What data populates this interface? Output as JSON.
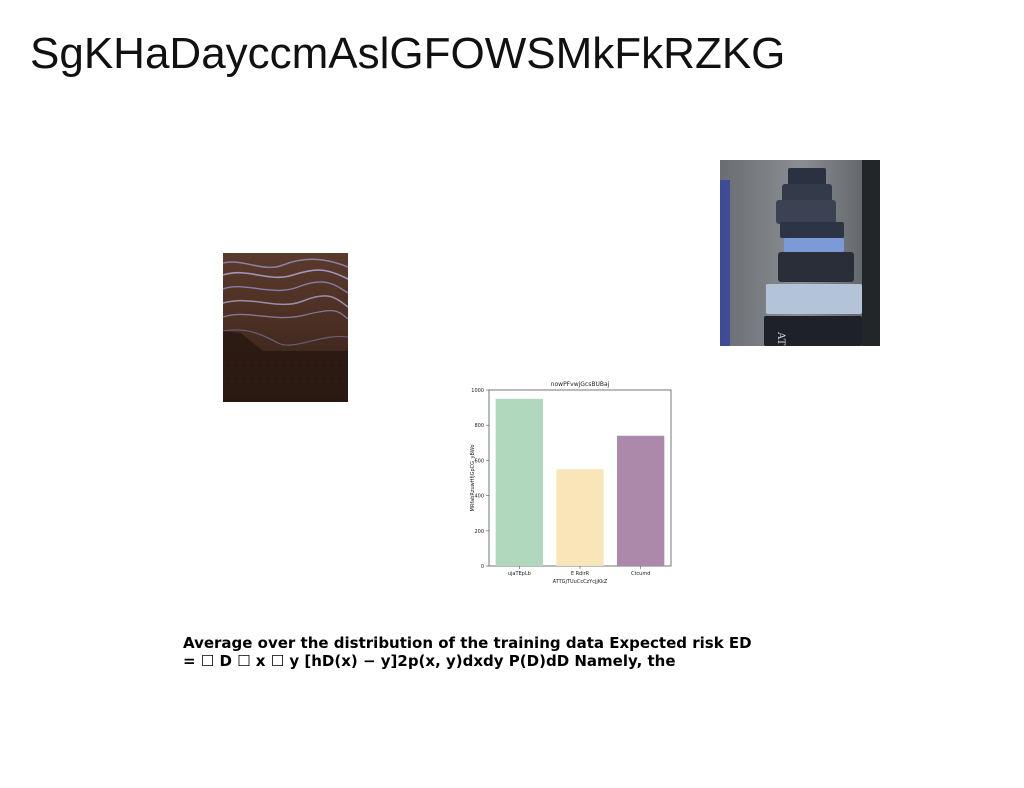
{
  "title": "SgKHaDayccmAslGFOWSMkFkRZKG",
  "images": {
    "left_photo": "wave-photo",
    "right_photo": "books-photo"
  },
  "paragraph": {
    "line1": "Average over the distribution of the training data Expected risk ED",
    "line2": "= ☐ D ☐ x ☐ y [hD(x) − y]2p(x, y)dxdy P(D)dD Namely, the"
  },
  "chart_data": {
    "type": "bar",
    "title": "nowPFvwjGcsBUBaj",
    "xlabel": "ATTGjTUuCcCzYcjjKkZ",
    "ylabel": "MRfabRzuwHfjGpCG_yBWo",
    "categories": [
      "ujaTEpLb",
      "E RdirR",
      "Ctcumd"
    ],
    "values": [
      950,
      550,
      740
    ],
    "colors": [
      "#b0d8bd",
      "#f8e6b9",
      "#ac88ab"
    ],
    "ylim": [
      0,
      1000
    ],
    "yticks": [
      0,
      200,
      400,
      600,
      800,
      1000
    ],
    "ytick_labels": [
      "0",
      "200",
      "400",
      "600",
      "800",
      "1000"
    ],
    "grid": false,
    "legend": "none"
  }
}
